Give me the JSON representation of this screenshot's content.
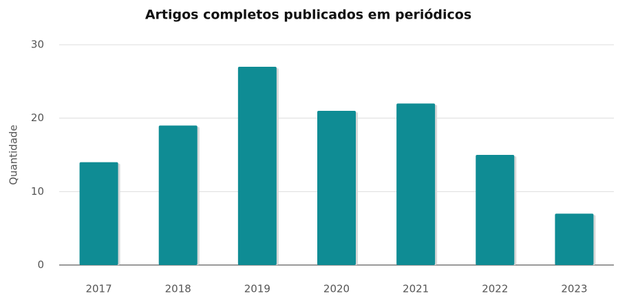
{
  "chart_data": {
    "type": "bar",
    "title": "Artigos completos publicados em periódicos",
    "y_label": "Quantidade",
    "categories": [
      "2017",
      "2018",
      "2019",
      "2020",
      "2021",
      "2022",
      "2023"
    ],
    "values": [
      14,
      19,
      27,
      21,
      22,
      15,
      7
    ],
    "color": "#0f8c94",
    "ylim": [
      0,
      30
    ],
    "yticks": [
      0,
      10,
      20,
      30
    ],
    "grid": true
  }
}
